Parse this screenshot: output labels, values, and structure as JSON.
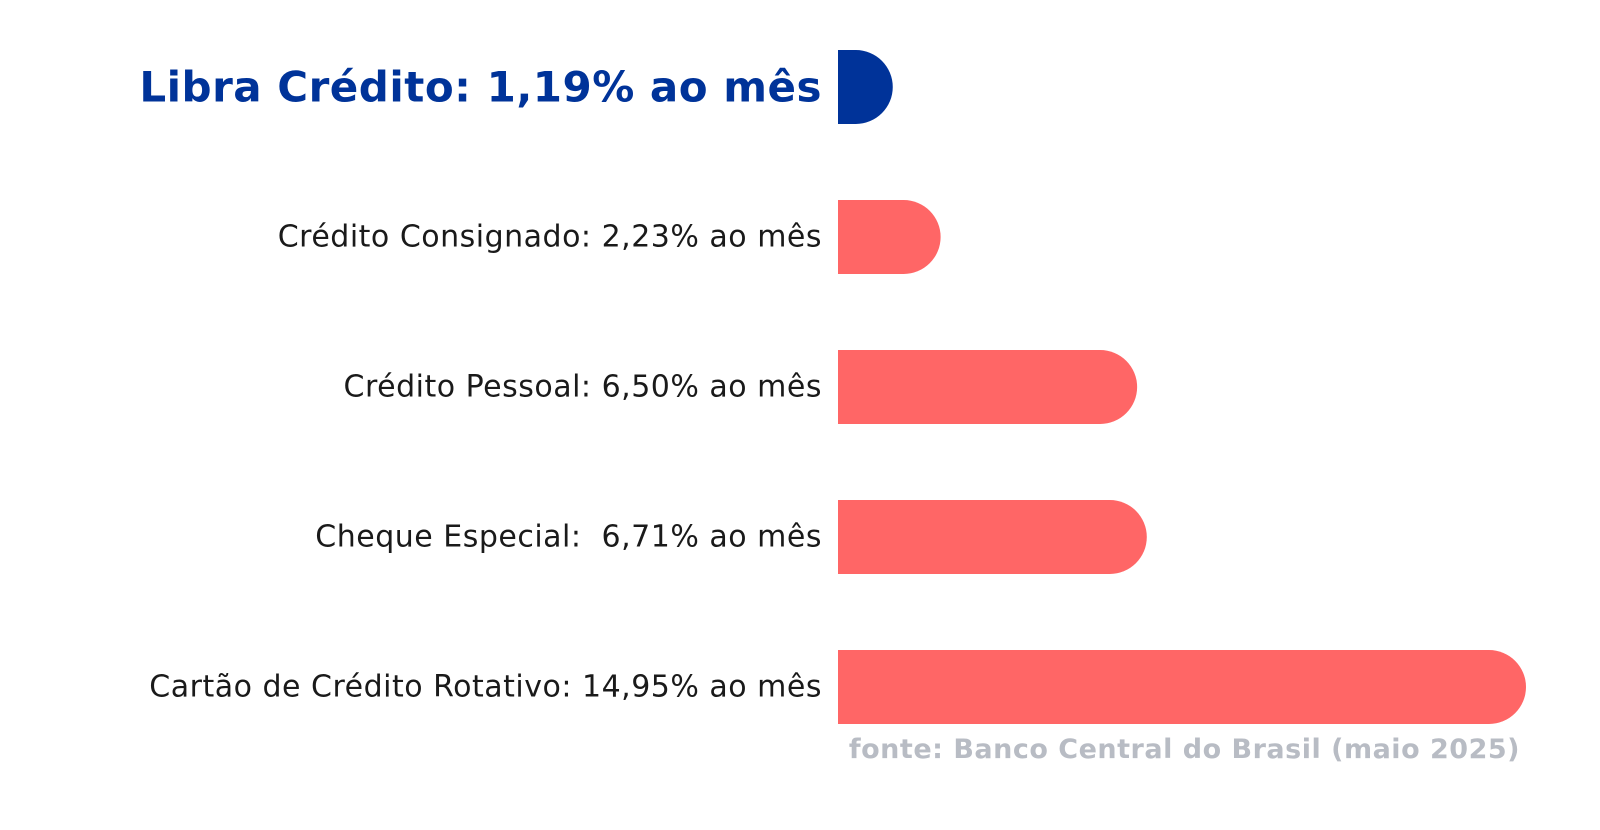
{
  "chart_data": {
    "type": "bar",
    "orientation": "horizontal",
    "categories": [
      "Libra Crédito",
      "Crédito Consignado",
      "Crédito Pessoal",
      "Cheque Especial",
      "Cartão de Crédito Rotativo"
    ],
    "values": [
      1.19,
      2.23,
      6.5,
      6.71,
      14.95
    ],
    "labels": [
      "Libra Crédito: 1,19% ao mês",
      "Crédito Consignado: 2,23% ao mês",
      "Crédito Pessoal: 6,50% ao mês",
      "Cheque Especial:  6,71% ao mês",
      "Cartão de Crédito Rotativo: 14,95% ao mês"
    ],
    "highlight_index": 0,
    "source": "fonte: Banco Central do Brasil (maio 2025)",
    "xlim": [
      0,
      14.95
    ],
    "grid": false,
    "colors": {
      "highlight": "#003399",
      "bars": "#ff6666",
      "label": "#1a1a1a",
      "source": "#b8bcc4"
    }
  }
}
